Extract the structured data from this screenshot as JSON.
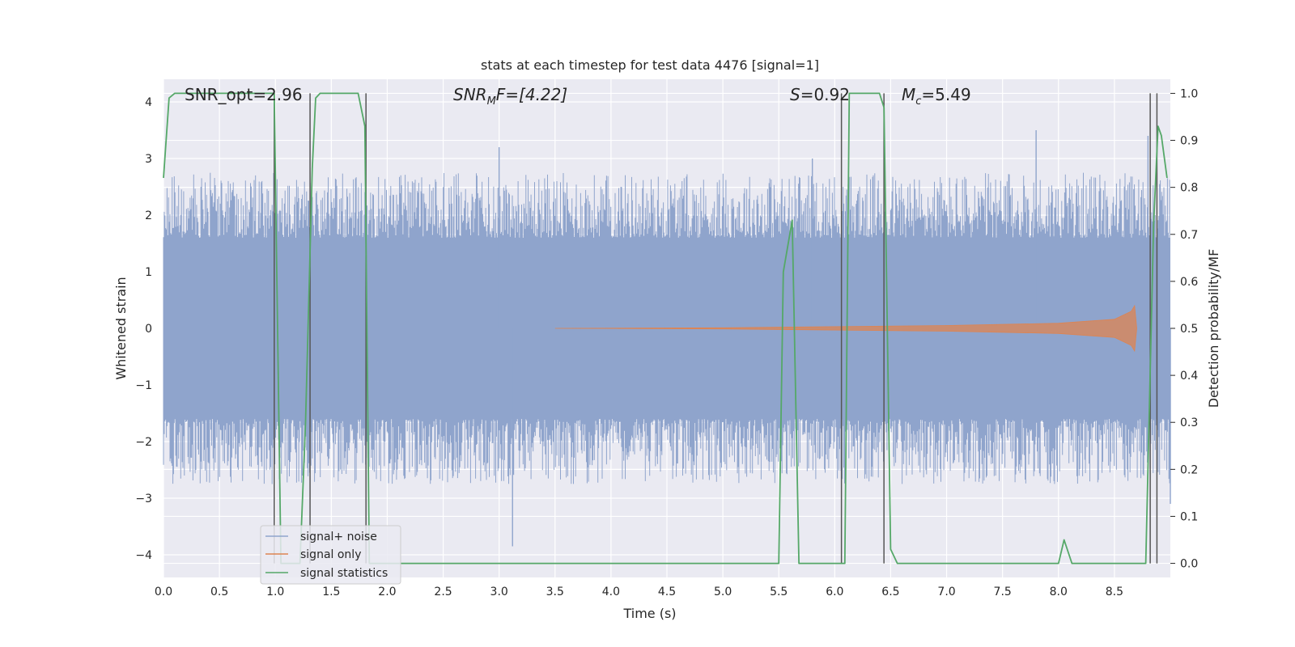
{
  "chart_data": {
    "type": "line",
    "title": "stats at each timestep for test data 4476 [signal=1]",
    "xlabel": "Time (s)",
    "ylabel": "Whitened strain",
    "y2label": "Detection probability/MF",
    "xlim": [
      0.0,
      9.0
    ],
    "ylim": [
      -4.4,
      4.4
    ],
    "y2lim": [
      -0.03,
      1.03
    ],
    "xticks": [
      0.0,
      0.5,
      1.0,
      1.5,
      2.0,
      2.5,
      3.0,
      3.5,
      4.0,
      4.5,
      5.0,
      5.5,
      6.0,
      6.5,
      7.0,
      7.5,
      8.0,
      8.5
    ],
    "xtick_labels": [
      "0.0",
      "0.5",
      "1.0",
      "1.5",
      "2.0",
      "2.5",
      "3.0",
      "3.5",
      "4.0",
      "4.5",
      "5.0",
      "5.5",
      "6.0",
      "6.5",
      "7.0",
      "7.5",
      "8.0",
      "8.5"
    ],
    "yticks": [
      -4,
      -3,
      -2,
      -1,
      0,
      1,
      2,
      3,
      4
    ],
    "ytick_labels": [
      "−4",
      "−3",
      "−2",
      "−1",
      "0",
      "1",
      "2",
      "3",
      "4"
    ],
    "y2ticks": [
      0.0,
      0.1,
      0.2,
      0.3,
      0.4,
      0.5,
      0.6,
      0.7,
      0.8,
      0.9,
      1.0
    ],
    "y2tick_labels": [
      "0.0",
      "0.1",
      "0.2",
      "0.3",
      "0.4",
      "0.5",
      "0.6",
      "0.7",
      "0.8",
      "0.9",
      "1.0"
    ],
    "grid": true,
    "legend_position": "bottom-left",
    "colors": {
      "plot_bg": "#eaeaf2",
      "grid": "#ffffff",
      "noise": "#8fa4cc",
      "signal": "#dd8452",
      "stats": "#55a868",
      "vline": "#555555"
    },
    "annotations": {
      "snr_opt": "SNR_opt=2.96",
      "snr_mf_prefix": "SNR",
      "snr_mf_sub": "M",
      "snr_mf_suffix": "F=[4.22]",
      "s_name": "S",
      "s_value": "=0.92",
      "mc_name": "M",
      "mc_sub": "c",
      "mc_value": "=5.49"
    },
    "series": [
      {
        "name": "signal+ noise",
        "style": "dense noise band",
        "core_band": [
          -1.6,
          1.6
        ],
        "typical_peak_range": [
          -2.6,
          2.6
        ],
        "notable_peaks": [
          [
            3.0,
            3.2
          ],
          [
            3.12,
            -3.85
          ],
          [
            5.8,
            3.0
          ],
          [
            9.0,
            -3.1
          ],
          [
            7.8,
            3.5
          ],
          [
            8.8,
            3.4
          ]
        ]
      },
      {
        "name": "signal only",
        "style": "chirp envelope",
        "envelope": [
          [
            3.5,
            0.0
          ],
          [
            5.0,
            0.01
          ],
          [
            6.0,
            0.03
          ],
          [
            7.0,
            0.05
          ],
          [
            8.0,
            0.09
          ],
          [
            8.5,
            0.16
          ],
          [
            8.65,
            0.3
          ],
          [
            8.68,
            -0.4
          ],
          [
            8.7,
            0.0
          ]
        ]
      },
      {
        "name": "signal statistics",
        "style": "line on secondary axis",
        "x": [
          0.0,
          0.05,
          0.1,
          0.15,
          0.2,
          0.5,
          0.95,
          0.99,
          1.05,
          1.22,
          1.27,
          1.33,
          1.36,
          1.4,
          1.7,
          1.74,
          1.8,
          1.84,
          1.9,
          2.5,
          5.5,
          5.54,
          5.62,
          5.68,
          6.06,
          6.09,
          6.13,
          6.4,
          6.44,
          6.5,
          6.56,
          6.8,
          7.9,
          8.0,
          8.05,
          8.12,
          8.2,
          8.7,
          8.78,
          8.85,
          8.89,
          8.92,
          8.97
        ],
        "y": [
          0.82,
          0.99,
          1.0,
          1.0,
          1.0,
          1.0,
          1.0,
          1.0,
          0.0,
          0.0,
          0.3,
          0.84,
          0.99,
          1.0,
          1.0,
          1.0,
          0.93,
          0.0,
          0.0,
          0.0,
          0.0,
          0.62,
          0.73,
          0.0,
          0.0,
          0.0,
          1.0,
          1.0,
          0.97,
          0.03,
          0.0,
          0.0,
          0.0,
          0.0,
          0.05,
          0.0,
          0.0,
          0.0,
          0.0,
          0.72,
          0.93,
          0.91,
          0.82
        ]
      }
    ],
    "vlines": [
      0.99,
      1.31,
      1.81,
      6.06,
      6.44,
      8.82,
      8.88
    ]
  }
}
